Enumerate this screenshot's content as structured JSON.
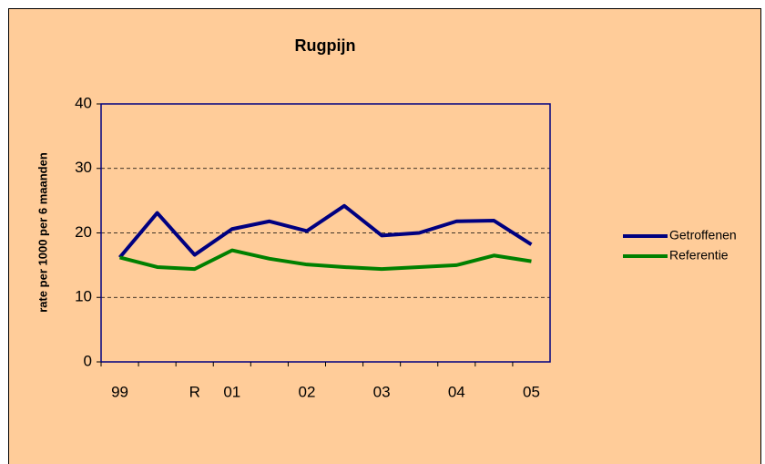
{
  "chart_data": {
    "type": "line",
    "title": "Rugpijn",
    "y_label": "rate per 1000 per 6 maanden",
    "categories": [
      "99",
      null,
      "R",
      "01",
      null,
      "02",
      null,
      "03",
      null,
      "04",
      null,
      "05"
    ],
    "series": [
      {
        "name": "Getroffenen",
        "color": "#000080",
        "values": [
          16.2,
          23.1,
          16.6,
          20.6,
          21.8,
          20.3,
          24.2,
          19.6,
          20.0,
          21.8,
          21.9,
          18.2
        ]
      },
      {
        "name": "Referentie",
        "color": "#008000",
        "values": [
          16.2,
          14.7,
          14.4,
          17.3,
          16.0,
          15.1,
          14.7,
          14.4,
          14.7,
          15.0,
          16.5,
          15.6
        ]
      }
    ],
    "ylim": [
      0,
      40
    ],
    "yticks": [
      0,
      10,
      20,
      30,
      40
    ],
    "grid": true,
    "legend": "right"
  }
}
